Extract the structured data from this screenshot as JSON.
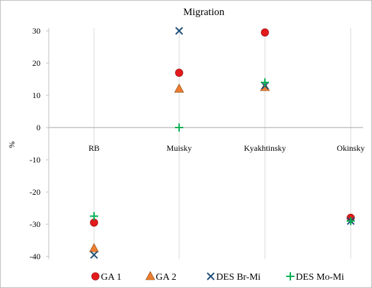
{
  "chart_data": {
    "type": "scatter",
    "title": "Migration",
    "ylabel": "%",
    "xlabel": "",
    "categories": [
      "RB",
      "Muisky",
      "Kyakhtinsky",
      "Okinsky"
    ],
    "ylim": [
      -40,
      30
    ],
    "yticks": [
      30,
      20,
      10,
      0,
      -10,
      -20,
      -30,
      -40
    ],
    "grid": "vertical",
    "legend": "bottom",
    "series": [
      {
        "name": "GA 1",
        "marker": "circle",
        "color": "#e31a1c",
        "values": [
          -29.5,
          17,
          29.5,
          -28
        ]
      },
      {
        "name": "GA 2",
        "marker": "triangle",
        "color": "#ed7d31",
        "values": [
          -37.5,
          12,
          12.5,
          null
        ]
      },
      {
        "name": "DES Br-Mi",
        "marker": "x",
        "color": "#1f4e79",
        "values": [
          -39.5,
          30,
          13,
          -29
        ]
      },
      {
        "name": "DES Mo-Mi",
        "marker": "plus",
        "color": "#00b050",
        "values": [
          -27.5,
          0,
          14,
          -29
        ]
      }
    ]
  }
}
